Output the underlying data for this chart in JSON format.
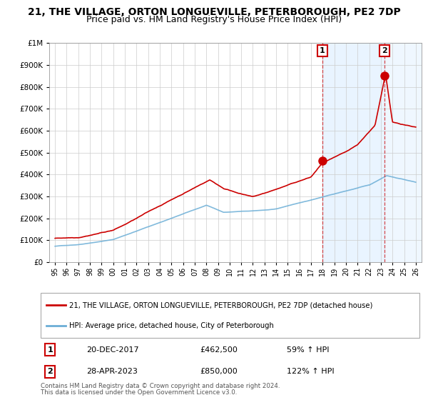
{
  "title": "21, THE VILLAGE, ORTON LONGUEVILLE, PETERBOROUGH, PE2 7DP",
  "subtitle": "Price paid vs. HM Land Registry's House Price Index (HPI)",
  "legend_line1": "21, THE VILLAGE, ORTON LONGUEVILLE, PETERBOROUGH, PE2 7DP (detached house)",
  "legend_line2": "HPI: Average price, detached house, City of Peterborough",
  "annotation1_label": "1",
  "annotation1_date": "20-DEC-2017",
  "annotation1_price": "£462,500",
  "annotation1_pct": "59% ↑ HPI",
  "annotation2_label": "2",
  "annotation2_date": "28-APR-2023",
  "annotation2_price": "£850,000",
  "annotation2_pct": "122% ↑ HPI",
  "footer1": "Contains HM Land Registry data © Crown copyright and database right 2024.",
  "footer2": "This data is licensed under the Open Government Licence v3.0.",
  "hpi_color": "#6baed6",
  "price_color": "#cc0000",
  "bg_color": "#ddeeff",
  "plot_bg": "#ffffff",
  "grid_color": "#cccccc",
  "marker1_x": 2017.97,
  "marker1_y": 462500,
  "marker2_x": 2023.32,
  "marker2_y": 850000,
  "vline1_x": 2017.97,
  "vline2_x": 2023.32,
  "ylim": [
    0,
    1000000
  ],
  "xlim": [
    1994.5,
    2026.5
  ],
  "title_fontsize": 10,
  "subtitle_fontsize": 9
}
